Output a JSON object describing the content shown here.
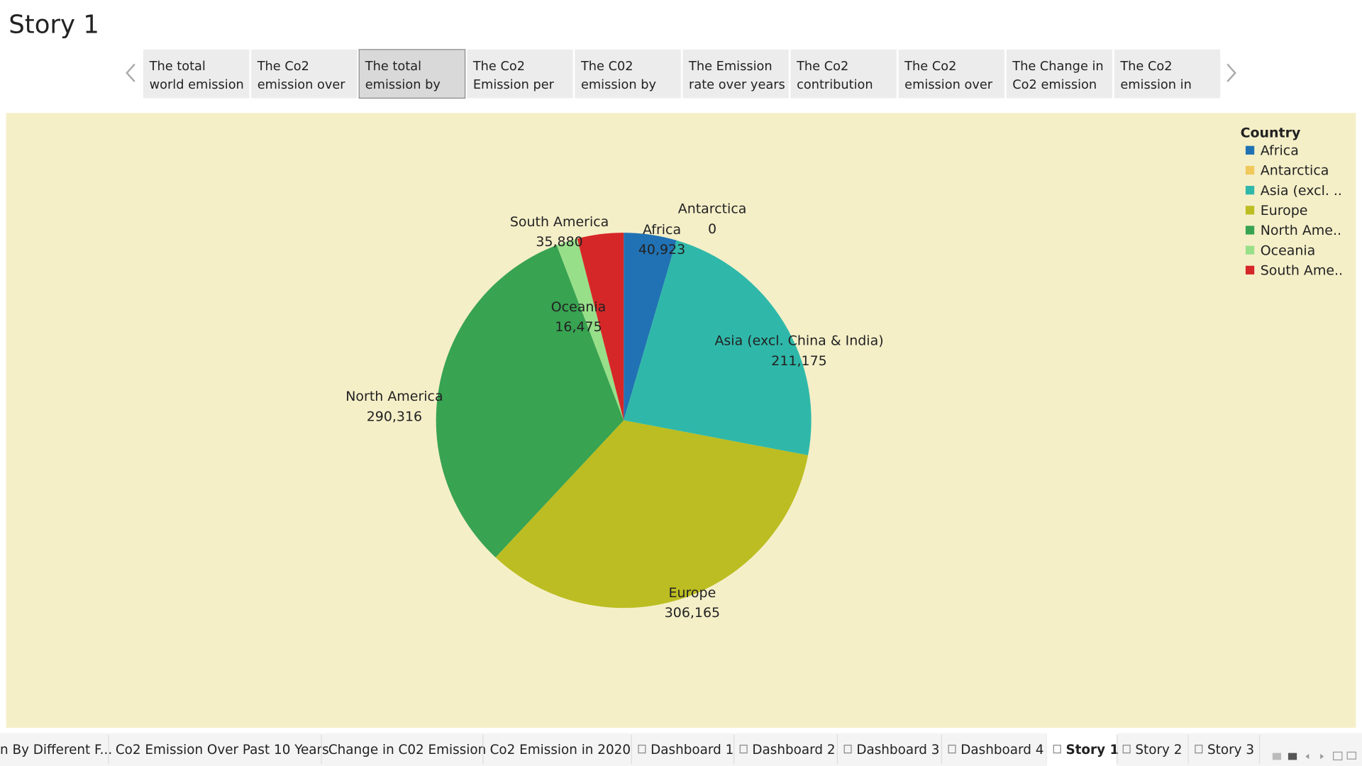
{
  "story_title": "Story 1",
  "story_points": [
    [
      "The total",
      "world emission"
    ],
    [
      "The  Co2",
      "emission over"
    ],
    [
      "The total",
      "emission by"
    ],
    [
      "The Co2",
      "Emission per"
    ],
    [
      "The C02",
      "emission by"
    ],
    [
      "The Emission",
      "rate over years"
    ],
    [
      "The Co2",
      "contribution"
    ],
    [
      "The Co2",
      "emission over"
    ],
    [
      "The Change in",
      "Co2 emission"
    ],
    [
      "The Co2",
      "emission in"
    ]
  ],
  "selected_story_point": 2,
  "chart_data": {
    "type": "pie",
    "categories": [
      "Africa",
      "Antarctica",
      "Asia (excl. China & India)",
      "Europe",
      "North America",
      "Oceania",
      "South America"
    ],
    "values": [
      40923,
      0,
      211175,
      306165,
      290316,
      16475,
      35880
    ],
    "value_labels": [
      "40,923",
      "0",
      "211,175",
      "306,165",
      "290,316",
      "16,475",
      "35,880"
    ],
    "colors": [
      "#2172b4",
      "#f1c85a",
      "#2fb8a9",
      "#bcbd22",
      "#38a351",
      "#98df8a",
      "#d62728"
    ],
    "legend_title": "Country",
    "legend_labels": [
      "Africa",
      "Antarctica",
      "Asia (excl. ..",
      "Europe",
      "North Ame..",
      "Oceania",
      "South Ame.."
    ],
    "legend_position": "top-right"
  },
  "bottom_tabs": [
    "n By Different F...",
    "Co2 Emission Over Past 10 Years",
    "Change in C02 Emission",
    "Co2 Emission in 2020",
    "Dashboard 1",
    "Dashboard 2",
    "Dashboard 3",
    "Dashboard 4",
    "Story 1",
    "Story 2",
    "Story 3"
  ],
  "selected_bottom_tab": 8
}
